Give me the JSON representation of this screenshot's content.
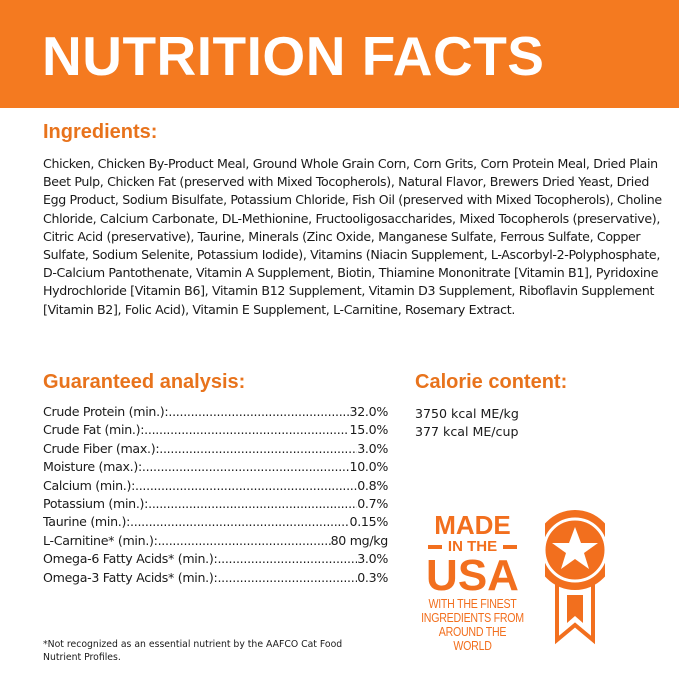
{
  "header": {
    "title": "NUTRITION FACTS",
    "color": "#f47a20"
  },
  "ingredients": {
    "heading": "Ingredients:",
    "text": "Chicken, Chicken By-Product Meal, Ground Whole Grain Corn, Corn Grits, Corn Protein Meal, Dried Plain Beet Pulp, Chicken Fat (preserved with Mixed Tocopherols), Natural Flavor, Brewers Dried Yeast, Dried Egg Product, Sodium Bisulfate, Potassium Chloride, Fish Oil (preserved with Mixed Tocopherols), Choline Chloride, Calcium Carbonate, DL-Methionine, Fructooligosaccharides, Mixed Tocopherols (preservative), Citric Acid (preservative), Taurine, Minerals (Zinc Oxide, Manganese Sulfate, Ferrous Sulfate, Copper Sulfate, Sodium Selenite, Potassium Iodide), Vitamins (Niacin Supplement, L-Ascorbyl-2-Polyphosphate, D-Calcium Pantothenate, Vitamin A Supplement, Biotin, Thiamine Mononitrate [Vitamin B1], Pyridoxine Hydrochloride [Vitamin B6], Vitamin B12 Supplement, Vitamin D3 Supplement, Riboflavin Supplement [Vitamin B2], Folic Acid), Vitamin E Supplement, L-Carnitine, Rosemary Extract."
  },
  "analysis": {
    "heading": "Guaranteed analysis:",
    "rows": [
      {
        "label": "Crude Protein (min.):",
        "value": "32.0%"
      },
      {
        "label": "Crude Fat (min.):",
        "value": "15.0%"
      },
      {
        "label": "Crude Fiber (max.):",
        "value": "3.0%"
      },
      {
        "label": "Moisture (max.):",
        "value": "10.0%"
      },
      {
        "label": "Calcium (min.):",
        "value": "0.8%"
      },
      {
        "label": "Potassium (min.):",
        "value": "0.7%"
      },
      {
        "label": "Taurine (min.):",
        "value": "0.15%"
      },
      {
        "label": "L-Carnitine* (min.):",
        "value": "80 mg/kg"
      },
      {
        "label": "Omega-6 Fatty Acids* (min.):",
        "value": "3.0%"
      },
      {
        "label": "Omega-3 Fatty Acids* (min.):",
        "value": "0.3%"
      }
    ]
  },
  "calorie": {
    "heading": "Calorie content:",
    "lines": [
      "3750 kcal ME/kg",
      "377 kcal ME/cup"
    ]
  },
  "badge": {
    "made": "MADE",
    "in_the": "IN THE",
    "usa": "USA",
    "tagline": [
      "WITH THE FINEST",
      "INGREDIENTS FROM",
      "AROUND THE WORLD"
    ],
    "icon": "star-ribbon-icon",
    "color": "#f26f1e"
  },
  "footnote": "*Not recognized as an essential nutrient by the AAFCO Cat Food Nutrient Profiles."
}
